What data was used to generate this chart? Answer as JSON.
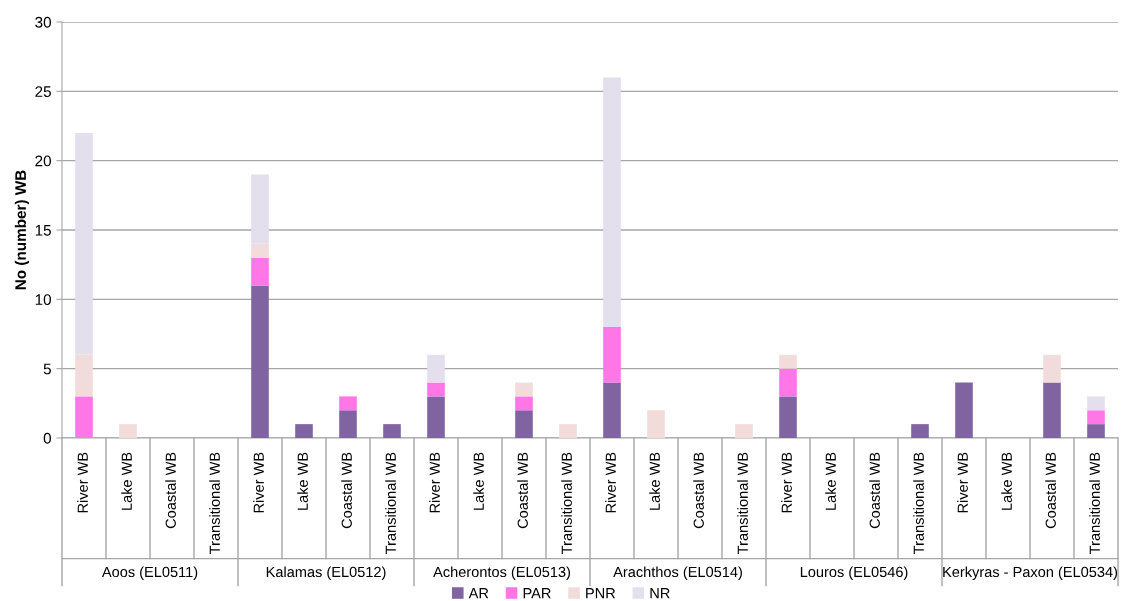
{
  "chart_data": {
    "type": "bar",
    "stacked": true,
    "ylabel": "No (number) WB",
    "categories": [
      "River WB",
      "Lake WB",
      "Coastal WB",
      "Transitional WB",
      "River WB",
      "Lake WB",
      "Coastal WB",
      "Transitional WB",
      "River WB",
      "Lake WB",
      "Coastal WB",
      "Transitional WB",
      "River WB",
      "Lake WB",
      "Coastal WB",
      "Transitional WB",
      "River WB",
      "Lake WB",
      "Coastal WB",
      "Transitional WB",
      "River WB",
      "Lake WB",
      "Coastal WB",
      "Transitional WB"
    ],
    "annotations": [
      "Aoos (EL0511)",
      "Kalamas (EL0512)",
      "Acherontos (EL0513)",
      "Arachthos (EL0514)",
      "Louros (EL0546)",
      "Kerkyras - Paxon (EL0534)"
    ],
    "series": [
      {
        "name": "AR",
        "color": "#8064a2",
        "values": [
          0,
          0,
          0,
          0,
          11,
          1,
          2,
          1,
          3,
          0,
          2,
          0,
          4,
          0,
          0,
          0,
          3,
          0,
          0,
          1,
          4,
          0,
          4,
          1
        ]
      },
      {
        "name": "PAR",
        "color": "#ff77e6",
        "values": [
          3,
          0,
          0,
          0,
          2,
          0,
          1,
          0,
          1,
          0,
          1,
          0,
          4,
          0,
          0,
          0,
          2,
          0,
          0,
          0,
          0,
          0,
          0,
          1
        ]
      },
      {
        "name": "PNR",
        "color": "#f2dcdb",
        "values": [
          3,
          1,
          0,
          0,
          1,
          0,
          0,
          0,
          0,
          0,
          1,
          1,
          0,
          2,
          0,
          1,
          1,
          0,
          0,
          0,
          0,
          0,
          2,
          0
        ]
      },
      {
        "name": "NR",
        "color": "#e4dfec",
        "values": [
          16,
          0,
          0,
          0,
          5,
          0,
          0,
          0,
          2,
          0,
          0,
          0,
          18,
          0,
          0,
          0,
          0,
          0,
          0,
          0,
          0,
          0,
          0,
          1
        ]
      }
    ],
    "ylim": [
      0,
      30
    ],
    "yticks": [
      0,
      5,
      10,
      15,
      20,
      25,
      30
    ],
    "grid": "y",
    "legend": "bottom"
  }
}
